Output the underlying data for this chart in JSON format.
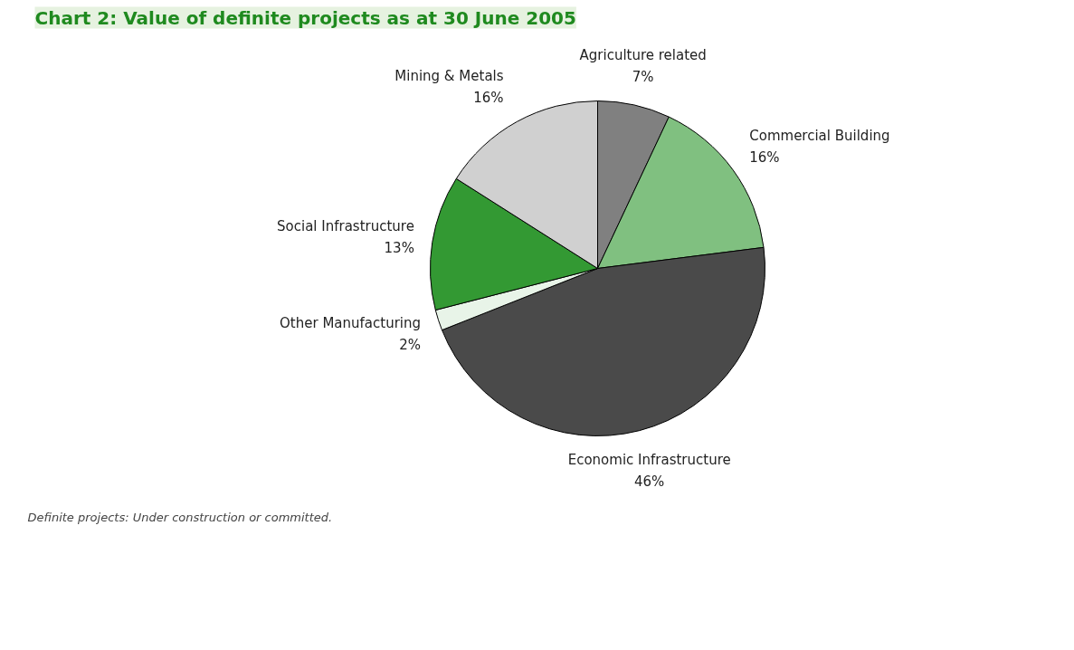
{
  "chart_data": {
    "type": "pie",
    "title": "Chart 2: Value of definite projects as at 30 June 2005",
    "categories": [
      "Agriculture related",
      "Commercial Building",
      "Economic Infrastructure",
      "Other Manufacturing",
      "Social Infrastructure",
      "Mining & Metals"
    ],
    "values": [
      7,
      16,
      46,
      2,
      13,
      16
    ],
    "colors": [
      "#808080",
      "#80c080",
      "#4a4a4a",
      "#e8f4e8",
      "#339933",
      "#d0d0d0"
    ],
    "value_labels": [
      "7%",
      "16%",
      "46%",
      "2%",
      "13%",
      "16%"
    ],
    "annotations": [
      "Definite projects: Under construction or committed."
    ]
  }
}
